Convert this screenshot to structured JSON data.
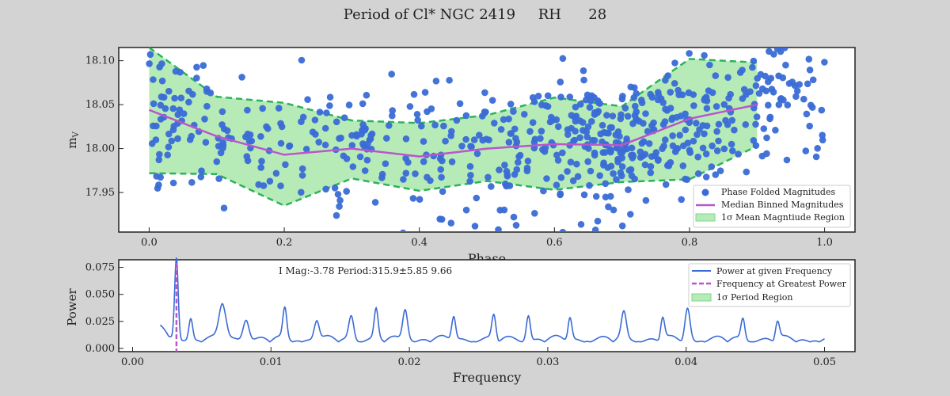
{
  "figure": {
    "title": "Period of Cl* NGC 2419     RH      28"
  },
  "chart_data": [
    {
      "type": "scatter",
      "name": "phase-folded-light-curve",
      "xlabel": "Phase",
      "ylabel": "m_V",
      "xlim": [
        -0.045,
        1.045
      ],
      "ylim": [
        17.905,
        18.115
      ],
      "xticks": [
        0.0,
        0.2,
        0.4,
        0.6,
        0.8,
        1.0
      ],
      "xtick_labels": [
        "0.0",
        "0.2",
        "0.4",
        "0.6",
        "0.8",
        "1.0"
      ],
      "yticks": [
        17.95,
        18.0,
        18.05,
        18.1
      ],
      "ytick_labels": [
        "17.95",
        "18.00",
        "18.05",
        "18.10"
      ],
      "grid": false,
      "legend_position": "lower-right",
      "legend": [
        "Phase Folded Magnitudes",
        "Median Binned Magnitudes",
        "1σ Mean Magntiude Region"
      ],
      "median_curve": {
        "x": [
          0.0,
          0.1,
          0.2,
          0.3,
          0.4,
          0.5,
          0.6,
          0.7,
          0.8,
          0.9
        ],
        "y": [
          18.044,
          18.014,
          17.993,
          18.0,
          17.991,
          18.0,
          18.005,
          18.004,
          18.034,
          18.05
        ]
      },
      "band_upper": {
        "x": [
          0.0,
          0.1,
          0.2,
          0.3,
          0.4,
          0.5,
          0.6,
          0.7,
          0.8,
          0.9
        ],
        "y": [
          18.115,
          18.059,
          18.052,
          18.032,
          18.029,
          18.038,
          18.058,
          18.048,
          18.102,
          18.098
        ]
      },
      "band_lower": {
        "x": [
          0.0,
          0.1,
          0.2,
          0.3,
          0.4,
          0.5,
          0.6,
          0.7,
          0.8,
          0.9
        ],
        "y": [
          17.972,
          17.971,
          17.935,
          17.966,
          17.952,
          17.963,
          17.953,
          17.962,
          17.965,
          18.003
        ]
      },
      "points_note": "approx. 650 phase-folded magnitudes, mean 18.005, scatter 0.04 mag, phase 0.0-1.0",
      "point_count": 650,
      "colors": {
        "points": "#3a6bd6",
        "median": "#bb55cc",
        "band_fill": "#b6ebb8",
        "band_edge": "#2bb35a"
      }
    },
    {
      "type": "line",
      "name": "periodogram",
      "xlabel": "Frequency",
      "ylabel": "Power",
      "xlim": [
        -0.001,
        0.0522
      ],
      "ylim": [
        -0.003,
        0.082
      ],
      "xticks": [
        0.0,
        0.01,
        0.02,
        0.03,
        0.04,
        0.05
      ],
      "xtick_labels": [
        "0.00",
        "0.01",
        "0.02",
        "0.03",
        "0.04",
        "0.05"
      ],
      "yticks": [
        0.0,
        0.025,
        0.05,
        0.075
      ],
      "ytick_labels": [
        "0.000",
        "0.025",
        "0.050",
        "0.075"
      ],
      "annotation": "I Mag:-3.78 Period:315.9±5.85 9.66",
      "legend_position": "top-right",
      "legend": [
        "Power at given Frequency",
        "Frequency at Greatest Power",
        "1σ Period Region"
      ],
      "peak_frequency": 0.00317,
      "peak_power": 0.079,
      "frequency_range": [
        0.002,
        0.05
      ],
      "colors": {
        "line": "#3a6bd6",
        "peak": "#bb55cc",
        "region": "#b6ebb8"
      }
    }
  ]
}
